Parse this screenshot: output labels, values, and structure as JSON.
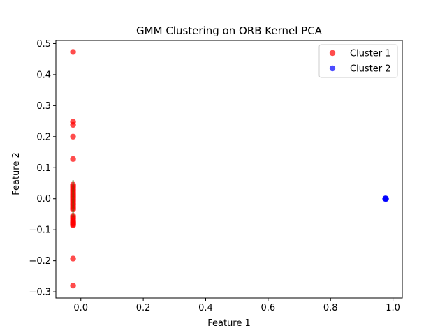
{
  "chart_data": {
    "type": "scatter",
    "title": "GMM Clustering on ORB Kernel PCA",
    "xlabel": "Feature 1",
    "ylabel": "Feature 2",
    "xlim": [
      -0.08,
      1.03
    ],
    "ylim": [
      -0.32,
      0.51
    ],
    "xticks": [
      0.0,
      0.2,
      0.4,
      0.6,
      0.8,
      1.0
    ],
    "xtick_labels": [
      "0.0",
      "0.2",
      "0.4",
      "0.6",
      "0.8",
      "1.0"
    ],
    "yticks": [
      -0.3,
      -0.2,
      -0.1,
      0.0,
      0.1,
      0.2,
      0.3,
      0.4,
      0.5
    ],
    "ytick_labels": [
      "−0.3",
      "−0.2",
      "−0.1",
      "0.0",
      "0.1",
      "0.2",
      "0.3",
      "0.4",
      "0.5"
    ],
    "grid": false,
    "legend_position": "top-right",
    "series": [
      {
        "name": "Cluster 1",
        "color": "#ff0000",
        "x": [
          -0.025,
          -0.025,
          -0.025,
          -0.025,
          -0.025,
          -0.025,
          -0.025,
          -0.025,
          -0.025,
          -0.025,
          -0.025,
          -0.025,
          -0.025,
          -0.025,
          -0.025,
          -0.025,
          -0.025,
          -0.025,
          -0.025,
          -0.025,
          -0.025,
          -0.025,
          -0.025,
          -0.025,
          -0.025,
          -0.025,
          -0.025,
          -0.025,
          -0.025,
          -0.025,
          -0.025,
          -0.025,
          -0.025,
          -0.025
        ],
        "y": [
          0.473,
          0.248,
          0.238,
          0.2,
          0.128,
          0.045,
          0.04,
          0.035,
          0.03,
          0.025,
          0.02,
          0.015,
          0.01,
          0.005,
          0.0,
          -0.005,
          -0.01,
          -0.015,
          -0.02,
          -0.025,
          -0.03,
          -0.035,
          -0.055,
          -0.06,
          -0.065,
          -0.07,
          -0.072,
          -0.075,
          -0.078,
          -0.08,
          -0.083,
          -0.086,
          -0.193,
          -0.28
        ]
      },
      {
        "name": "Cluster 2",
        "color": "#0000ff",
        "x": [
          0.975,
          0.976,
          0.977,
          0.978
        ],
        "y": [
          0.0,
          0.001,
          -0.001,
          0.0
        ]
      }
    ],
    "overlay_line": {
      "color": "#008000",
      "x": [
        -0.025,
        -0.025
      ],
      "y": [
        -0.06,
        0.06
      ]
    }
  }
}
